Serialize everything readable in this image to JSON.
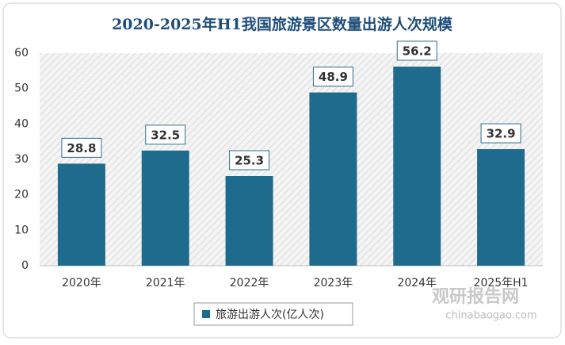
{
  "chart_data": {
    "type": "bar",
    "title": "2020-2025年H1我国旅游景区数量出游人次规模",
    "categories": [
      "2020年",
      "2021年",
      "2022年",
      "2023年",
      "2024年",
      "2025年H1"
    ],
    "series": [
      {
        "name": "旅游出游人次(亿人次)",
        "color": "#1f6b8e",
        "values": [
          28.8,
          32.5,
          25.3,
          48.9,
          56.2,
          32.9
        ]
      }
    ],
    "ylim": [
      0,
      60
    ],
    "yticks": [
      0,
      10,
      20,
      30,
      40,
      50,
      60
    ],
    "legend": "bottom",
    "watermark": {
      "name": "观研报告网",
      "url": "chinabaogao.com"
    }
  }
}
